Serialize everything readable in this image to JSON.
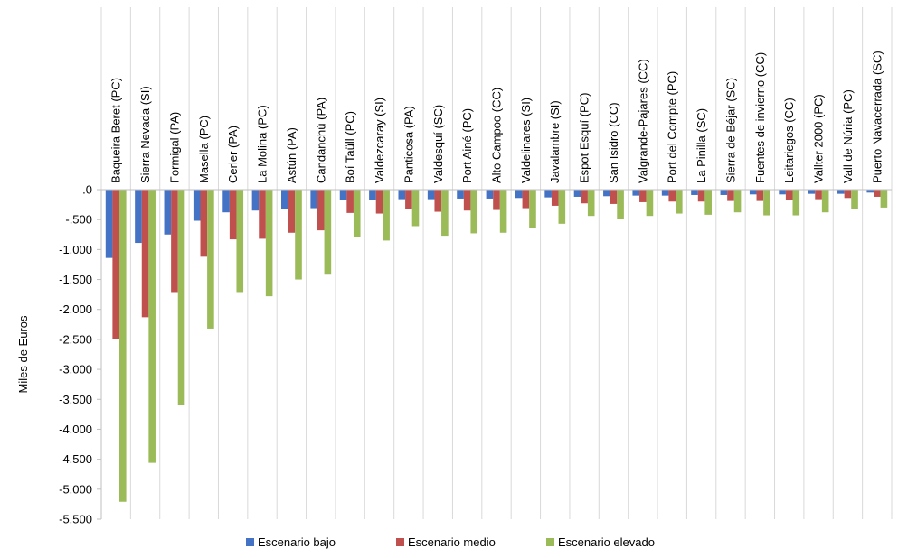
{
  "chart_data": {
    "type": "bar",
    "ylabel": "Miles de Euros",
    "ylim": [
      -5500,
      0
    ],
    "ytick_step": 500,
    "ytick_labels": [
      ".0",
      "-.500",
      "-1.000",
      "-1.500",
      "-2.000",
      "-2.500",
      "-3.000",
      "-3.500",
      "-4.000",
      "-4.500",
      "-5.000",
      "-5.500"
    ],
    "category_position": "top",
    "legend_position": "bottom",
    "categories": [
      "Baqueira Beret (PC)",
      "Sierra Nevada (SI)",
      "Formigal (PA)",
      "Masella (PC)",
      "Cerler (PA)",
      "La Molina (PC)",
      "Astún (PA)",
      "Candanchú (PA)",
      "Boí Taüll (PC)",
      "Valdezcaray (SI)",
      "Panticosa (PA)",
      "Valdesquí  (SC)",
      "Port Ainé (PC)",
      "Alto Campoo (CC)",
      "Valdelinares (SI)",
      "Javalambre (SI)",
      "Espot Esquí (PC)",
      "San Isidro (CC)",
      "Valgrande-Pajares (CC)",
      "Port del Compte (PC)",
      "La Pinilla (SC)",
      "Sierra de Béjar  (SC)",
      "Fuentes de invierno (CC)",
      "Leitariegos (CC)",
      "Vallter 2000 (PC)",
      "Vall de Núria (PC)",
      "Puerto Navacerrada  (SC)"
    ],
    "series": [
      {
        "name": "Escenario bajo",
        "color": "#4472C4",
        "values": [
          -1140,
          -890,
          -750,
          -520,
          -380,
          -350,
          -320,
          -310,
          -180,
          -170,
          -160,
          -160,
          -150,
          -150,
          -140,
          -130,
          -120,
          -110,
          -100,
          -100,
          -90,
          -90,
          -80,
          -80,
          -70,
          -70,
          -50
        ]
      },
      {
        "name": "Escenario medio",
        "color": "#C0504D",
        "values": [
          -2500,
          -2130,
          -1710,
          -1120,
          -830,
          -820,
          -720,
          -680,
          -390,
          -400,
          -320,
          -370,
          -350,
          -340,
          -310,
          -270,
          -230,
          -240,
          -210,
          -200,
          -200,
          -190,
          -190,
          -180,
          -160,
          -140,
          -120
        ]
      },
      {
        "name": "Escenario elevado",
        "color": "#9BBB59",
        "values": [
          -5210,
          -4560,
          -3590,
          -2320,
          -1710,
          -1780,
          -1500,
          -1420,
          -790,
          -850,
          -610,
          -770,
          -730,
          -720,
          -640,
          -570,
          -440,
          -490,
          -440,
          -400,
          -420,
          -380,
          -430,
          -430,
          -380,
          -330,
          -300
        ]
      }
    ]
  }
}
